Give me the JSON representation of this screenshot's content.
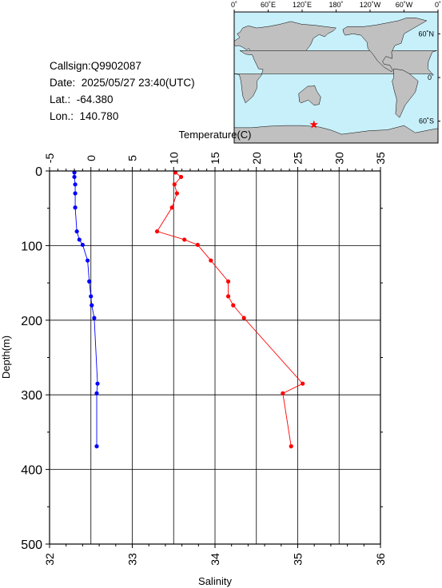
{
  "info": {
    "callsign": "Callsign:Q9902087",
    "date": "Date:  2025/05/27 23:40(UTC)",
    "lat": "Lat.:  -64.380",
    "lon": "Lon.:  140.780"
  },
  "map": {
    "top_ticks": [
      "0˚",
      "60˚E",
      "120˚E",
      "180˚",
      "120˚W",
      "60˚W",
      "0˚"
    ],
    "right_ticks": [
      "60˚N",
      "0˚",
      "60˚S"
    ],
    "marker": {
      "lon": 140.78,
      "lat": -64.38
    },
    "ocean_color": "#c8f0fa",
    "land_color": "#c0c0c0",
    "marker_color": "#ff0000"
  },
  "chart_data": {
    "type": "line",
    "depth_label": "Depth(m)",
    "temperature_label": "Temperature(C)",
    "salinity_label": "Salinity",
    "depth_range": [
      0,
      500
    ],
    "temperature_range": [
      -5,
      35
    ],
    "salinity_range": [
      32,
      36
    ],
    "depth_ticks": [
      "0",
      "100",
      "200",
      "300",
      "400",
      "500"
    ],
    "temperature_ticks": [
      "-5",
      "0",
      "5",
      "10",
      "15",
      "20",
      "25",
      "30",
      "35"
    ],
    "salinity_ticks": [
      "32",
      "33",
      "34",
      "35",
      "36"
    ],
    "grid": true,
    "series": [
      {
        "kind": "temperature",
        "color": "#ff0000",
        "depth": [
          2,
          8,
          18,
          30,
          49,
          81,
          92,
          99,
          120,
          148,
          168,
          180,
          197,
          285,
          298,
          369
        ],
        "values": [
          10.2,
          10.9,
          10.1,
          10.4,
          9.8,
          8.0,
          11.3,
          12.9,
          14.5,
          16.6,
          16.6,
          17.2,
          18.5,
          25.6,
          23.2,
          24.2
        ]
      },
      {
        "kind": "salinity",
        "color": "#0000ff",
        "depth": [
          2,
          8,
          18,
          30,
          49,
          81,
          92,
          99,
          120,
          148,
          168,
          180,
          197,
          285,
          298,
          369
        ],
        "values": [
          32.3,
          32.3,
          32.31,
          32.31,
          32.31,
          32.33,
          32.36,
          32.4,
          32.46,
          32.48,
          32.5,
          32.51,
          32.54,
          32.58,
          32.57,
          32.57
        ]
      }
    ]
  }
}
